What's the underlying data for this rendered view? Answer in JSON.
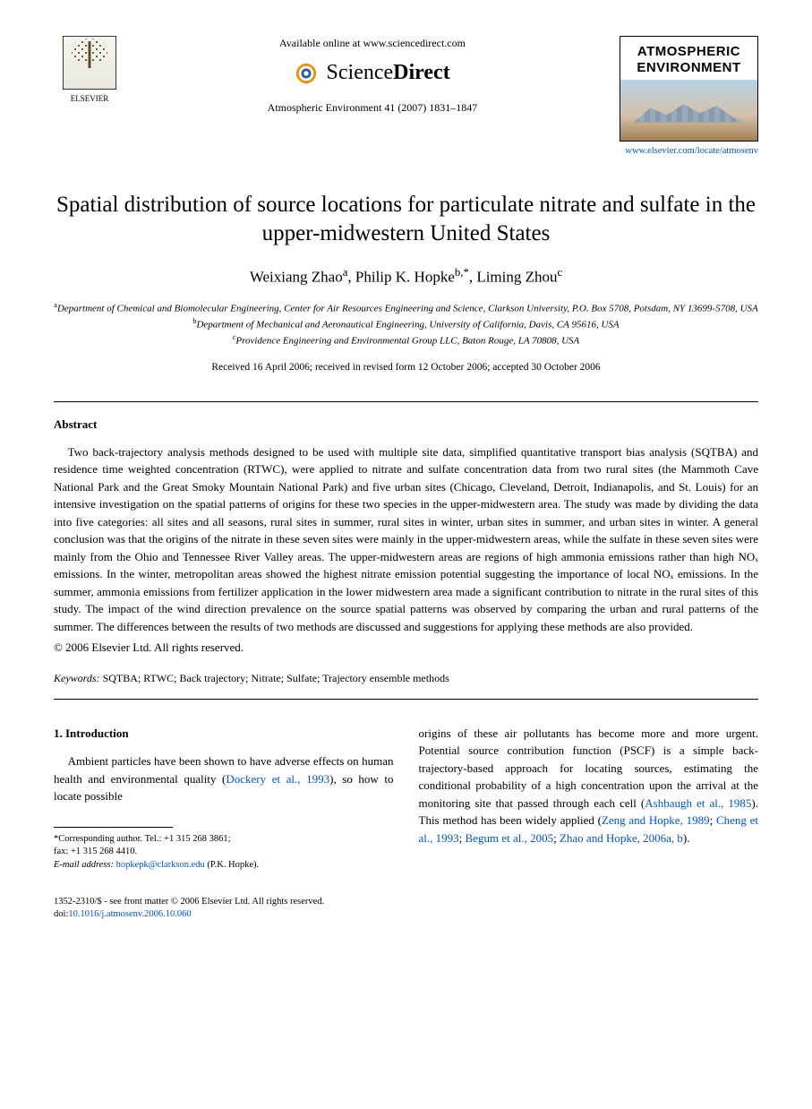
{
  "header": {
    "elsevier_label": "ELSEVIER",
    "available_online": "Available online at www.sciencedirect.com",
    "sd_prefix": "Science",
    "sd_suffix": "Direct",
    "journal_ref": "Atmospheric Environment 41 (2007) 1831–1847",
    "journal_box_line1": "ATMOSPHERIC",
    "journal_box_line2": "ENVIRONMENT",
    "journal_link": "www.elsevier.com/locate/atmosenv"
  },
  "title": "Spatial distribution of source locations for particulate nitrate and sulfate in the upper-midwestern United States",
  "authors": {
    "a1_name": "Weixiang Zhao",
    "a1_sup": "a",
    "a2_name": "Philip K. Hopke",
    "a2_sup": "b,",
    "a2_star": "*",
    "a3_name": "Liming Zhou",
    "a3_sup": "c"
  },
  "affiliations": {
    "a_sup": "a",
    "a_text": "Department of Chemical and Biomolecular Engineering, Center for Air Resources Engineering and Science, Clarkson University, P.O. Box 5708, Potsdam, NY 13699-5708, USA",
    "b_sup": "b",
    "b_text": "Department of Mechanical and Aeronautical Engineering, University of California, Davis, CA 95616, USA",
    "c_sup": "c",
    "c_text": "Providence Engineering and Environmental Group LLC, Baton Rouge, LA 70808, USA"
  },
  "dates": "Received 16 April 2006; received in revised form 12 October 2006; accepted 30 October 2006",
  "abstract": {
    "label": "Abstract",
    "body": "Two back-trajectory analysis methods designed to be used with multiple site data, simplified quantitative transport bias analysis (SQTBA) and residence time weighted concentration (RTWC), were applied to nitrate and sulfate concentration data from two rural sites (the Mammoth Cave National Park and the Great Smoky Mountain National Park) and five urban sites (Chicago, Cleveland, Detroit, Indianapolis, and St. Louis) for an intensive investigation on the spatial patterns of origins for these two species in the upper-midwestern area. The study was made by dividing the data into five categories: all sites and all seasons, rural sites in summer, rural sites in winter, urban sites in summer, and urban sites in winter. A general conclusion was that the origins of the nitrate in these seven sites were mainly in the upper-midwestern areas, while the sulfate in these seven sites were mainly from the Ohio and Tennessee River Valley areas. The upper-midwestern areas are regions of high ammonia emissions rather than high NOₓ emissions. In the winter, metropolitan areas showed the highest nitrate emission potential suggesting the importance of local NOₓ emissions. In the summer, ammonia emissions from fertilizer application in the lower midwestern area made a significant contribution to nitrate in the rural sites of this study. The impact of the wind direction prevalence on the source spatial patterns was observed by comparing the urban and rural patterns of the summer. The differences between the results of two methods are discussed and suggestions for applying these methods are also provided.",
    "copyright": "© 2006 Elsevier Ltd. All rights reserved."
  },
  "keywords": {
    "label": "Keywords:",
    "text": " SQTBA; RTWC; Back trajectory; Nitrate; Sulfate; Trajectory ensemble methods"
  },
  "section1": {
    "heading": "1. Introduction",
    "col1_text_before_ref": "Ambient particles have been shown to have adverse effects on human health and environmental quality (",
    "col1_ref": "Dockery et al., 1993",
    "col1_text_after_ref": "), so how to locate possible",
    "col2_text1": "origins of these air pollutants has become more and more urgent. Potential source contribution function (PSCF) is a simple back-trajectory-based approach for locating sources, estimating the conditional probability of a high concentration upon the arrival at the monitoring site that passed through each cell (",
    "col2_ref1": "Ashbaugh et al., 1985",
    "col2_text2": "). This method has been widely applied (",
    "col2_ref2": "Zeng and Hopke, 1989",
    "col2_sep1": "; ",
    "col2_ref3": "Cheng et al., 1993",
    "col2_sep2": "; ",
    "col2_ref4": "Begum et al., 2005",
    "col2_sep3": "; ",
    "col2_ref5": "Zhao and Hopke, 2006a, b",
    "col2_text3": ")."
  },
  "footnotes": {
    "corr_label": "*Corresponding author. Tel.: +1 315 268 3861;",
    "fax": "fax: +1 315 268 4410.",
    "email_label": "E-mail address:",
    "email": "hopkepk@clarkson.edu",
    "email_suffix": " (P.K. Hopke)."
  },
  "footer": {
    "line1": "1352-2310/$ - see front matter © 2006 Elsevier Ltd. All rights reserved.",
    "doi_prefix": "doi:",
    "doi": "10.1016/j.atmosenv.2006.10.060"
  }
}
